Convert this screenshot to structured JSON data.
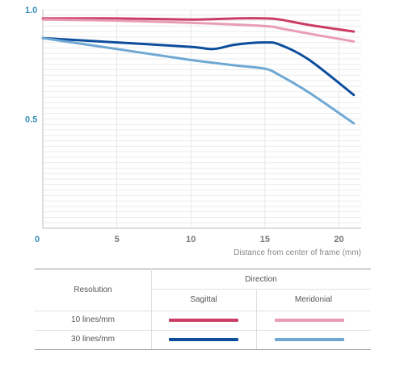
{
  "chart_data": {
    "type": "line",
    "xlabel": "Distance from center of frame (mm)",
    "ylabel": "",
    "xlim": [
      0,
      21.5
    ],
    "ylim": [
      0,
      1.0
    ],
    "x_ticks": [
      "0",
      "5",
      "10",
      "15",
      "20"
    ],
    "y_ticks": [
      "0.5",
      "1.0"
    ],
    "grid": true,
    "series": [
      {
        "name": "10 lines/mm Sagittal",
        "color": "#cc3d66",
        "x": [
          0,
          5,
          10,
          13,
          15,
          16,
          18,
          21
        ],
        "y": [
          0.96,
          0.96,
          0.955,
          0.96,
          0.96,
          0.955,
          0.93,
          0.9
        ]
      },
      {
        "name": "10 lines/mm Meridonial",
        "color": "#e89db3",
        "x": [
          0,
          5,
          10,
          15,
          16,
          18,
          21
        ],
        "y": [
          0.955,
          0.95,
          0.94,
          0.925,
          0.915,
          0.89,
          0.855
        ]
      },
      {
        "name": "30 lines/mm Sagittal",
        "color": "#0c4d9c",
        "x": [
          0,
          5,
          10,
          11.5,
          13,
          15,
          16,
          18,
          21
        ],
        "y": [
          0.87,
          0.85,
          0.83,
          0.82,
          0.84,
          0.85,
          0.84,
          0.77,
          0.61
        ]
      },
      {
        "name": "30 lines/mm Meridonial",
        "color": "#6fa8d3",
        "x": [
          0,
          5,
          10,
          13,
          15,
          16,
          18,
          21
        ],
        "y": [
          0.87,
          0.82,
          0.77,
          0.745,
          0.73,
          0.7,
          0.62,
          0.48
        ]
      }
    ]
  },
  "legend": {
    "direction_label": "Direction",
    "resolution_label": "Resolution",
    "sagittal_label": "Sagittal",
    "meridonial_label": "Meridonial",
    "rows": [
      {
        "label": "10 lines/mm",
        "sagittal_color": "#cc3d66",
        "meridonial_color": "#e89db3"
      },
      {
        "label": "30 lines/mm",
        "sagittal_color": "#0c4d9c",
        "meridonial_color": "#6fa8d3"
      }
    ]
  }
}
